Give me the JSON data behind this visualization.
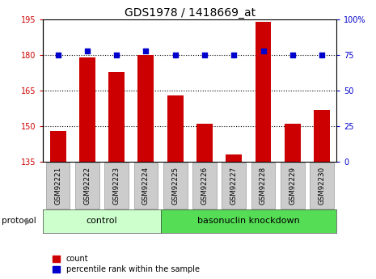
{
  "title": "GDS1978 / 1418669_at",
  "samples": [
    "GSM92221",
    "GSM92222",
    "GSM92223",
    "GSM92224",
    "GSM92225",
    "GSM92226",
    "GSM92227",
    "GSM92228",
    "GSM92229",
    "GSM92230"
  ],
  "counts": [
    148,
    179,
    173,
    180,
    163,
    151,
    138,
    194,
    151,
    157
  ],
  "percentile_ranks": [
    75,
    78,
    75,
    78,
    75,
    75,
    75,
    78,
    75,
    75
  ],
  "ylim_left": [
    135,
    195
  ],
  "ylim_right": [
    0,
    100
  ],
  "yticks_left": [
    135,
    150,
    165,
    180,
    195
  ],
  "yticks_right": [
    0,
    25,
    50,
    75,
    100
  ],
  "bar_color": "#cc0000",
  "dot_color": "#0000cc",
  "control_label": "control",
  "knockdown_label": "basonuclin knockdown",
  "protocol_label": "protocol",
  "legend_count_label": "count",
  "legend_pct_label": "percentile rank within the sample",
  "control_color": "#ccffcc",
  "knockdown_color": "#55dd55",
  "tick_bg_color": "#cccccc",
  "n_control": 4,
  "n_knockdown": 6
}
